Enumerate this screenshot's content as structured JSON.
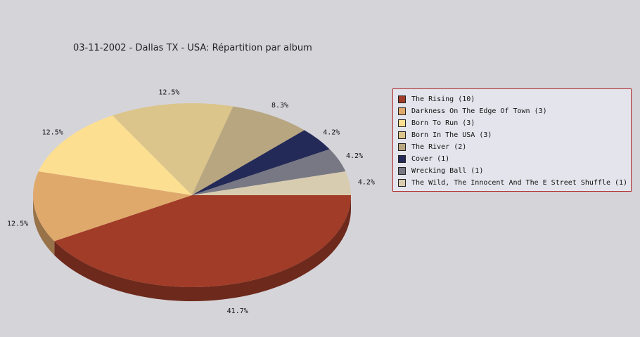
{
  "chart_data": {
    "type": "pie",
    "title": "03-11-2002 - Dallas TX - USA:  Répartition par album",
    "slices": [
      {
        "label": "The Rising (10)",
        "value": 10,
        "pct_label": "41.7%",
        "color": "#a03c28"
      },
      {
        "label": "Darkness On The Edge Of Town (3)",
        "value": 3,
        "pct_label": "12.5%",
        "color": "#e0a96c"
      },
      {
        "label": "Born To Run (3)",
        "value": 3,
        "pct_label": "12.5%",
        "color": "#fddf92"
      },
      {
        "label": "Born In The USA (3)",
        "value": 3,
        "pct_label": "12.5%",
        "color": "#dcc58a"
      },
      {
        "label": "The River (2)",
        "value": 2,
        "pct_label": "8.3%",
        "color": "#b8a680"
      },
      {
        "label": "Cover (1)",
        "value": 1,
        "pct_label": "4.2%",
        "color": "#242a58"
      },
      {
        "label": "Wrecking Ball (1)",
        "value": 1,
        "pct_label": "4.2%",
        "color": "#787884"
      },
      {
        "label": "The Wild, The Innocent And The E Street Shuffle (1)",
        "value": 1,
        "pct_label": "4.2%",
        "color": "#d8ccb0"
      }
    ],
    "legend_position": "right"
  }
}
